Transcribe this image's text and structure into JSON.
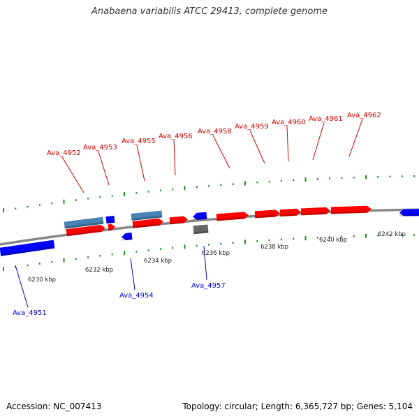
{
  "title": "Anabaena variabilis ATCC 29413, complete genome",
  "footer": {
    "accession": "Accession: NC_007413",
    "summary": "Topology: circular; Length: 6,365,727 bp; Genes: 5,104"
  },
  "colors": {
    "forward_cds": "#ff0000",
    "forward_gene": "#4682b4",
    "reverse_cds": "#0000ff",
    "other_feature": "#666666",
    "backbone": "#888888",
    "ticks": "#228b22",
    "forward_label": "#cc0000",
    "reverse_label": "#0000cc"
  },
  "axis": {
    "tick_labels": [
      "6230 kbp",
      "6232 kbp",
      "6234 kbp",
      "6236 kbp",
      "6238 kbp",
      "6240 kbp",
      "6242 kbp"
    ]
  },
  "gene_labels": {
    "forward": [
      "Ava_4952",
      "Ava_4953",
      "Ava_4955",
      "Ava_4956",
      "Ava_4958",
      "Ava_4959",
      "Ava_4960",
      "Ava_4961",
      "Ava_4962"
    ],
    "reverse": [
      "Ava_4951",
      "Ava_4954",
      "Ava_4957"
    ]
  }
}
